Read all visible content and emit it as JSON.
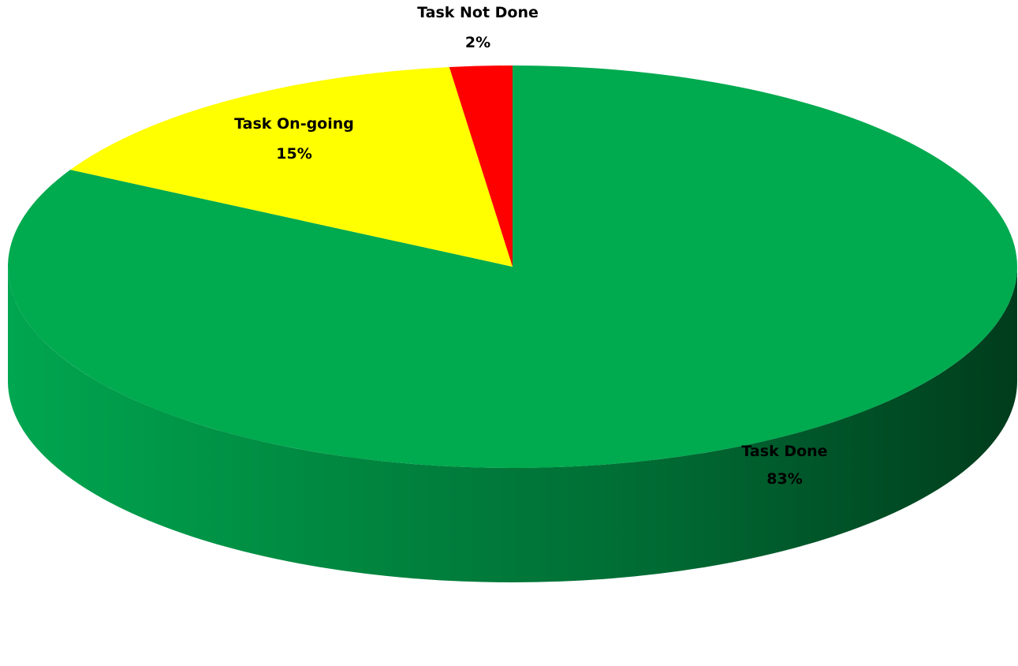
{
  "chart_data": {
    "type": "pie",
    "style": "3d",
    "title": "",
    "slices": [
      {
        "label": "Task Done",
        "percent_label": "83%",
        "value": 83,
        "color": "#00AA4F"
      },
      {
        "label": "Task On-going",
        "percent_label": "15%",
        "value": 15,
        "color": "#FFFF00"
      },
      {
        "label": "Task Not Done",
        "percent_label": "2%",
        "value": 2,
        "color": "#FF0000"
      }
    ],
    "legend": "none",
    "data_labels": "category-and-percent"
  }
}
